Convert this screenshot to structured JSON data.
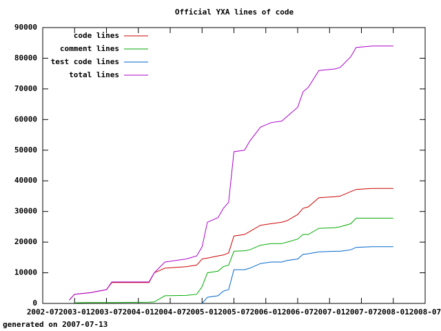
{
  "chart_data": {
    "type": "line",
    "title": "Official YXA lines of code",
    "footnote": "generated on 2007-07-13",
    "x": [
      "2002-12",
      "2003-01",
      "2003-04",
      "2003-07",
      "2003-08",
      "2004-03",
      "2004-04",
      "2004-06",
      "2004-10",
      "2004-12",
      "2005-01",
      "2005-02",
      "2005-04",
      "2005-05",
      "2005-06",
      "2005-07",
      "2005-09",
      "2005-10",
      "2005-12",
      "2006-02",
      "2006-04",
      "2006-05",
      "2006-07",
      "2006-08",
      "2006-09",
      "2006-11",
      "2007-02",
      "2007-03",
      "2007-05",
      "2007-06",
      "2007-09",
      "2008-01"
    ],
    "series": [
      {
        "name": "code lines",
        "color": "#cc0000",
        "values": [
          1100,
          3000,
          3500,
          4500,
          6800,
          6800,
          10000,
          11500,
          12000,
          12500,
          14500,
          14800,
          15500,
          15800,
          16500,
          22000,
          22500,
          23500,
          25500,
          26000,
          26500,
          27000,
          29000,
          31000,
          31500,
          34500,
          34800,
          35000,
          36500,
          37200,
          37500,
          37500
        ]
      },
      {
        "name": "comment lines",
        "color": "#00aa00",
        "values": [
          null,
          200,
          300,
          300,
          300,
          400,
          500,
          2500,
          2600,
          3000,
          5500,
          10000,
          10500,
          12000,
          12500,
          17000,
          17200,
          17500,
          19000,
          19500,
          19500,
          20000,
          21000,
          22500,
          22500,
          24500,
          24700,
          25000,
          26000,
          27800,
          27800,
          27800
        ]
      },
      {
        "name": "test code lines",
        "color": "#0066cc",
        "values": [
          null,
          null,
          null,
          null,
          null,
          null,
          null,
          null,
          null,
          null,
          0,
          2000,
          2500,
          4000,
          4500,
          11000,
          11000,
          11500,
          13000,
          13500,
          13500,
          14000,
          14500,
          16000,
          16200,
          16800,
          17000,
          17000,
          17500,
          18300,
          18500,
          18500
        ]
      },
      {
        "name": "total lines",
        "color": "#aa00cc",
        "values": [
          1100,
          3000,
          3500,
          4500,
          7000,
          7000,
          10000,
          13500,
          14500,
          15500,
          18500,
          26500,
          28000,
          31000,
          33000,
          49500,
          50000,
          53000,
          57500,
          59000,
          59500,
          61000,
          64000,
          69000,
          70500,
          76000,
          76500,
          77000,
          80500,
          83500,
          84000,
          84000
        ]
      }
    ],
    "xlim": [
      "2002-07",
      "2008-07"
    ],
    "xticks": [
      "2002-07",
      "2003-01",
      "2003-07",
      "2004-01",
      "2004-07",
      "2005-01",
      "2005-07",
      "2006-01",
      "2006-07",
      "2007-01",
      "2007-07",
      "2008-01",
      "2008-07"
    ],
    "ylim": [
      0,
      90000
    ],
    "yticks": [
      0,
      10000,
      20000,
      30000,
      40000,
      50000,
      60000,
      70000,
      80000,
      90000
    ],
    "legend": "top-left"
  }
}
